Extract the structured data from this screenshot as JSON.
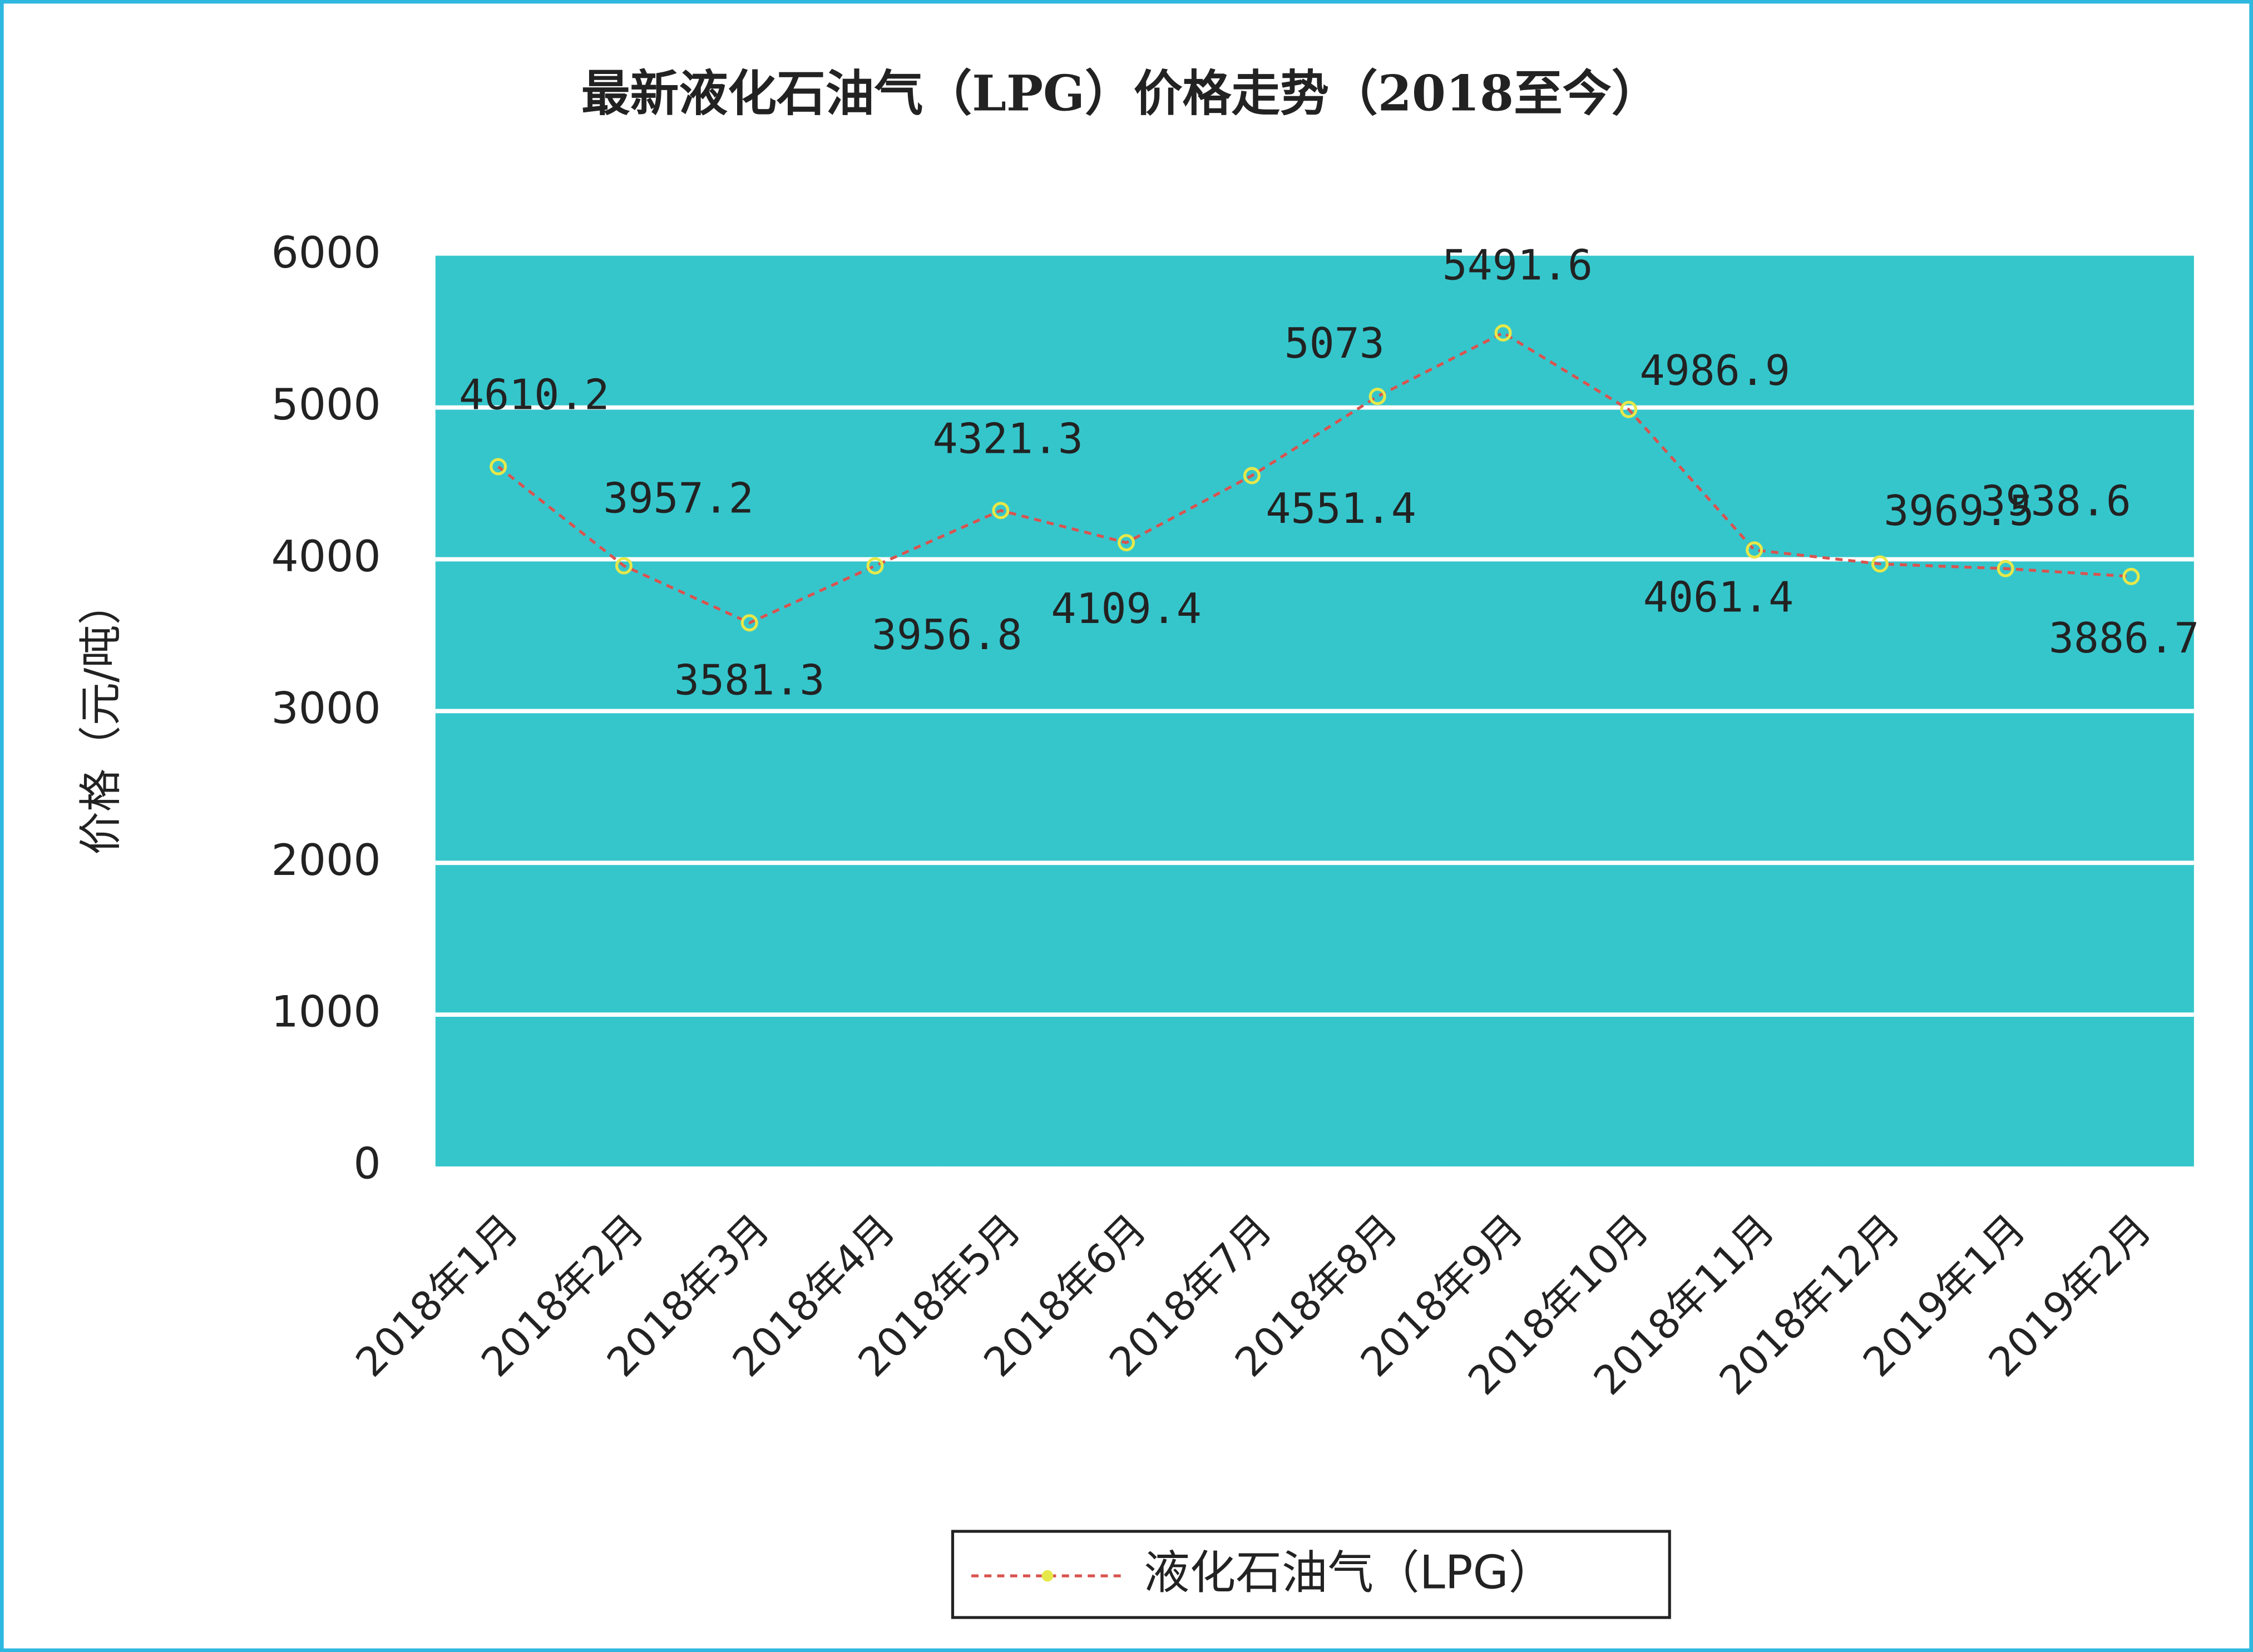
{
  "chart_data": {
    "type": "line",
    "title": "最新液化石油气（LPG）价格走势（2018至今）",
    "y_label": "价格（元/吨）",
    "categories": [
      "2018年1月",
      "2018年2月",
      "2018年3月",
      "2018年4月",
      "2018年5月",
      "2018年6月",
      "2018年7月",
      "2018年8月",
      "2018年9月",
      "2018年10月",
      "2018年11月",
      "2018年12月",
      "2019年1月",
      "2019年2月"
    ],
    "series": [
      {
        "name": "液化石油气（LPG）",
        "color": "#d9534f",
        "marker_color": "#e6e84a",
        "values": [
          4610.2,
          3957.2,
          3581.3,
          3956.8,
          4321.3,
          4109.4,
          4551.4,
          5073,
          5491.6,
          4986.9,
          4061.4,
          3969.5,
          3938.6,
          3886.7
        ]
      }
    ],
    "ylim": [
      0,
      6000
    ],
    "yticks": [
      0,
      1000,
      2000,
      3000,
      4000,
      5000,
      6000
    ],
    "grid": true,
    "plot_background": "#35c6cc",
    "legend": "bottom"
  }
}
